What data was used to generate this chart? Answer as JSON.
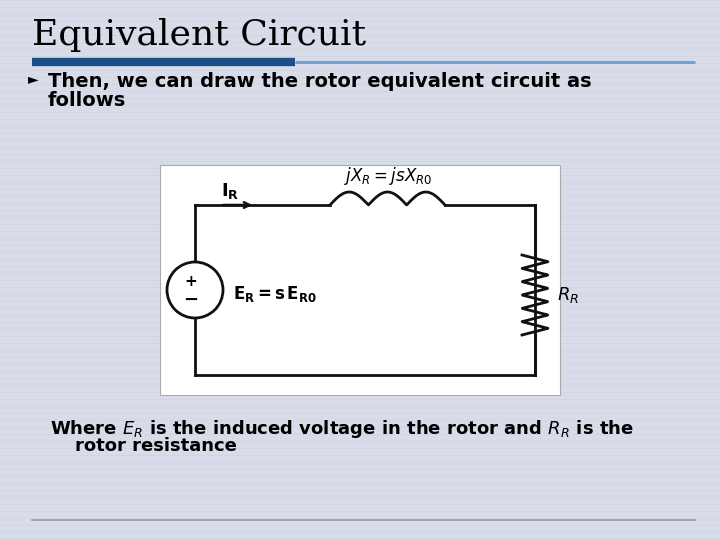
{
  "title": "Equivalent Circuit",
  "title_fontsize": 26,
  "title_color": "#000000",
  "slide_bg": "#d8dce8",
  "bullet_text_line1": "Then, we can draw the rotor equivalent circuit as",
  "bullet_text_line2": "follows",
  "bullet_fontsize": 14,
  "footer_line1": "Where $E_R$ is the induced voltage in the rotor and $R_R$ is the",
  "footer_line2": "    rotor resistance",
  "footer_fontsize": 13,
  "title_bar_dark": "#1a4f8a",
  "title_bar_light": "#6a9fd0",
  "wire_color": "#111111",
  "circuit_bg": "#ffffff"
}
